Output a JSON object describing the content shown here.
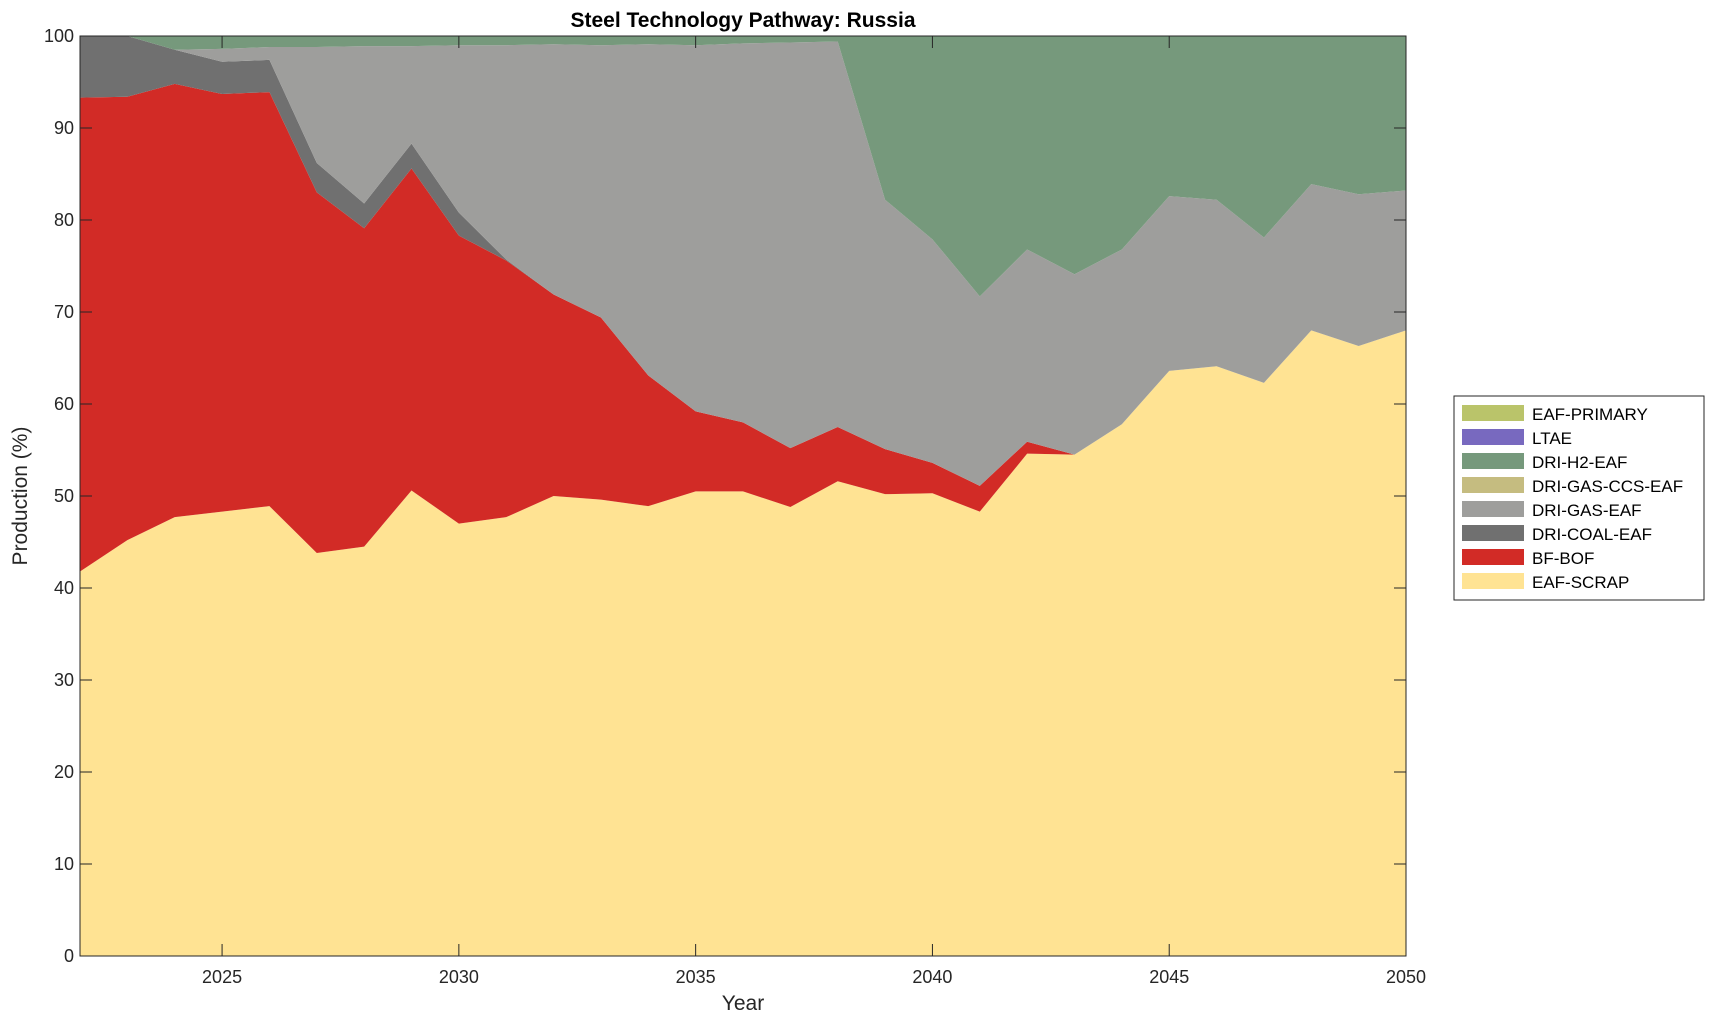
{
  "chart_data": {
    "type": "area",
    "title": "Steel Technology Pathway: Russia",
    "xlabel": "Year",
    "ylabel": "Production (%)",
    "xlim": [
      2022,
      2050
    ],
    "ylim": [
      0,
      100
    ],
    "x_ticks": [
      2025,
      2030,
      2035,
      2040,
      2045,
      2050
    ],
    "y_ticks": [
      0,
      10,
      20,
      30,
      40,
      50,
      60,
      70,
      80,
      90,
      100
    ],
    "x_tick_labels": [
      "2025",
      "2030",
      "2035",
      "2040",
      "2045",
      "2050"
    ],
    "y_tick_labels": [
      "0",
      "10",
      "20",
      "30",
      "40",
      "50",
      "60",
      "70",
      "80",
      "90",
      "100"
    ],
    "grid": false,
    "stacked": true,
    "legend_position": "right",
    "x": [
      2022,
      2023,
      2024,
      2025,
      2026,
      2027,
      2028,
      2029,
      2030,
      2031,
      2032,
      2033,
      2034,
      2035,
      2036,
      2037,
      2038,
      2039,
      2040,
      2041,
      2042,
      2043,
      2044,
      2045,
      2046,
      2047,
      2048,
      2049,
      2050
    ],
    "series": [
      {
        "name": "EAF-SCRAP",
        "color": "#FFE393",
        "values": [
          41.8,
          45.2,
          47.7,
          48.3,
          48.9,
          43.8,
          44.5,
          50.6,
          47.0,
          47.7,
          50.0,
          49.6,
          48.9,
          50.5,
          50.5,
          48.8,
          51.6,
          50.2,
          50.3,
          48.3,
          54.6,
          54.5,
          57.8,
          63.6,
          64.1,
          62.3,
          68.0,
          66.3,
          68.0
        ]
      },
      {
        "name": "BF-BOF",
        "color": "#D22B26",
        "values": [
          51.5,
          48.2,
          47.1,
          45.4,
          45.0,
          39.2,
          34.6,
          35.0,
          31.3,
          27.9,
          21.9,
          19.8,
          14.2,
          8.7,
          7.5,
          6.4,
          5.9,
          4.9,
          3.3,
          2.8,
          1.3,
          0,
          0,
          0,
          0,
          0,
          0,
          0,
          0
        ]
      },
      {
        "name": "DRI-COAL-EAF",
        "color": "#707070",
        "values": [
          6.7,
          6.6,
          3.7,
          3.5,
          3.5,
          3.2,
          2.7,
          2.7,
          2.5,
          0.1,
          0,
          0,
          0,
          0,
          0,
          0,
          0,
          0,
          0,
          0,
          0,
          0,
          0,
          0,
          0,
          0,
          0,
          0,
          0
        ]
      },
      {
        "name": "DRI-GAS-EAF",
        "color": "#9E9E9C",
        "values": [
          0,
          0,
          0,
          1.4,
          1.4,
          12.6,
          17.1,
          10.6,
          18.2,
          23.3,
          27.2,
          29.6,
          36.0,
          39.8,
          41.2,
          44.1,
          41.9,
          27.1,
          24.3,
          20.6,
          20.9,
          19.6,
          19.0,
          19.0,
          18.1,
          15.8,
          15.9,
          16.5,
          15.2
        ]
      },
      {
        "name": "DRI-GAS-CCS-EAF",
        "color": "#C5BC80",
        "values": [
          0,
          0,
          0,
          0,
          0,
          0,
          0,
          0,
          0,
          0,
          0,
          0,
          0,
          0,
          0,
          0,
          0,
          0,
          0,
          0,
          0,
          0,
          0,
          0,
          0,
          0,
          0,
          0,
          0
        ]
      },
      {
        "name": "DRI-H2-EAF",
        "color": "#76997C",
        "values": [
          0,
          0,
          1.5,
          1.4,
          1.2,
          1.2,
          1.1,
          1.1,
          1.0,
          1.0,
          0.9,
          1.0,
          0.9,
          1.0,
          0.8,
          0.7,
          0.6,
          17.8,
          22.1,
          28.3,
          23.2,
          25.9,
          23.2,
          17.4,
          17.8,
          21.9,
          16.1,
          17.2,
          16.8
        ]
      },
      {
        "name": "LTAE",
        "color": "#7869BF",
        "values": [
          0,
          0,
          0,
          0,
          0,
          0,
          0,
          0,
          0,
          0,
          0,
          0,
          0,
          0,
          0,
          0,
          0,
          0,
          0,
          0,
          0,
          0,
          0,
          0,
          0,
          0,
          0,
          0,
          0
        ]
      },
      {
        "name": "EAF-PRIMARY",
        "color": "#BAC46A",
        "values": [
          0,
          0,
          0,
          0,
          0,
          0,
          0,
          0,
          0,
          0,
          0,
          0,
          0,
          0,
          0,
          0,
          0,
          0,
          0,
          0,
          0,
          0,
          0,
          0,
          0,
          0,
          0,
          0,
          0
        ]
      }
    ],
    "legend_order": [
      "EAF-PRIMARY",
      "LTAE",
      "DRI-H2-EAF",
      "DRI-GAS-CCS-EAF",
      "DRI-GAS-EAF",
      "DRI-COAL-EAF",
      "BF-BOF",
      "EAF-SCRAP"
    ]
  }
}
